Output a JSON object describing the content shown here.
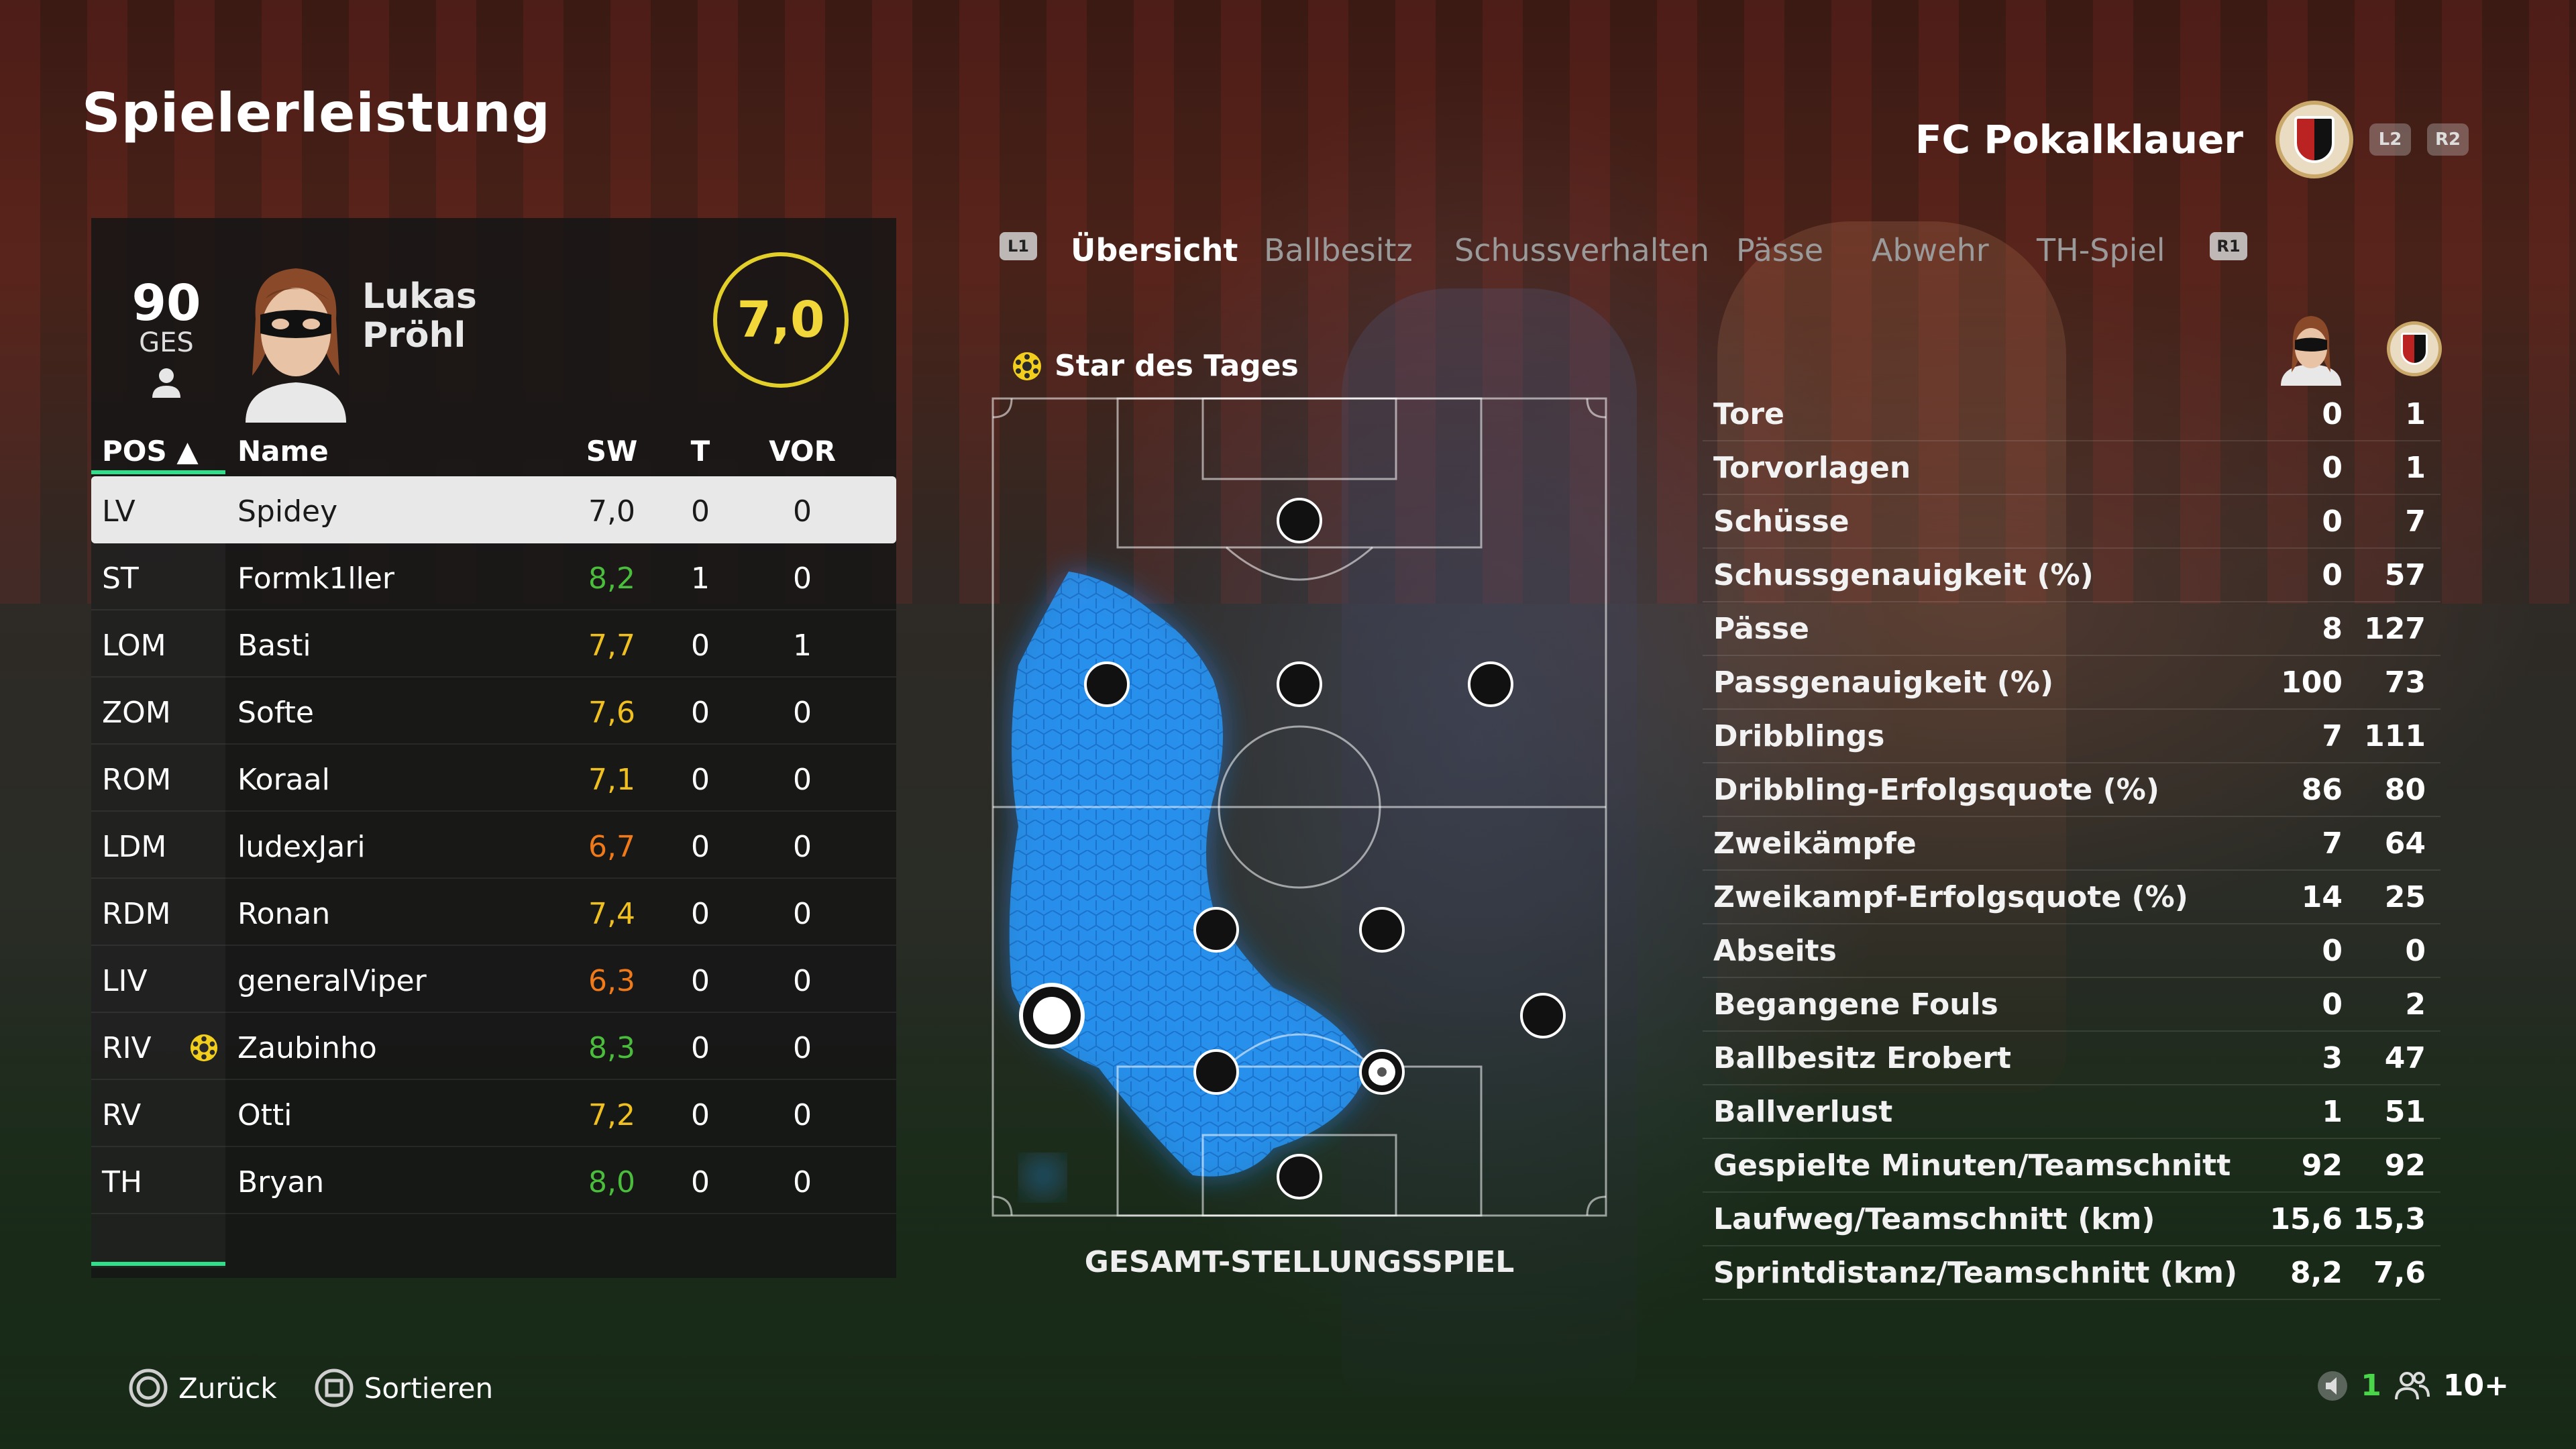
{
  "page": {
    "title": "Spielerleistung"
  },
  "club": {
    "name": "FC Pokalklauer",
    "buttons": [
      "L2",
      "R2"
    ]
  },
  "player": {
    "overall": "90",
    "overall_label": "GES",
    "first_name": "Lukas",
    "last_name": "Pröhl",
    "match_rating": "7,0"
  },
  "table": {
    "headers": {
      "pos": "POS ▲",
      "name": "Name",
      "sw": "SW",
      "t": "T",
      "vor": "VOR"
    },
    "rows": [
      {
        "pos": "LV",
        "name": "Spidey",
        "sw": "7,0",
        "t": "0",
        "vor": "0",
        "color": "#1a1a1a",
        "selected": true
      },
      {
        "pos": "ST",
        "name": "Formk1ller",
        "sw": "8,2",
        "t": "1",
        "vor": "0",
        "color": "#4bbd3c"
      },
      {
        "pos": "LOM",
        "name": "Basti",
        "sw": "7,7",
        "t": "0",
        "vor": "1",
        "color": "#f0c020"
      },
      {
        "pos": "ZOM",
        "name": "Softe",
        "sw": "7,6",
        "t": "0",
        "vor": "0",
        "color": "#f0c020"
      },
      {
        "pos": "ROM",
        "name": "Koraal",
        "sw": "7,1",
        "t": "0",
        "vor": "0",
        "color": "#f0c020"
      },
      {
        "pos": "LDM",
        "name": "ludexJari",
        "sw": "6,7",
        "t": "0",
        "vor": "0",
        "color": "#f07a1a"
      },
      {
        "pos": "RDM",
        "name": "Ronan",
        "sw": "7,4",
        "t": "0",
        "vor": "0",
        "color": "#f0c020"
      },
      {
        "pos": "LIV",
        "name": "generalViper",
        "sw": "6,3",
        "t": "0",
        "vor": "0",
        "color": "#f07a1a"
      },
      {
        "pos": "RIV",
        "name": "Zaubinho",
        "sw": "8,3",
        "t": "0",
        "vor": "0",
        "color": "#4bbd3c",
        "star": true
      },
      {
        "pos": "RV",
        "name": "Otti",
        "sw": "7,2",
        "t": "0",
        "vor": "0",
        "color": "#f0c020"
      },
      {
        "pos": "TH",
        "name": "Bryan",
        "sw": "8,0",
        "t": "0",
        "vor": "0",
        "color": "#4bbd3c"
      }
    ]
  },
  "tabs": {
    "left_chip": "L1",
    "right_chip": "R1",
    "items": [
      "Übersicht",
      "Ballbesitz",
      "Schussverhalten",
      "Pässe",
      "Abwehr",
      "TH-Spiel"
    ],
    "active": "Übersicht"
  },
  "star_of_day": "Star des Tages",
  "pitch_caption": "GESAMT-STELLUNGSSPIEL",
  "stats": [
    {
      "label": "Tore",
      "player": "0",
      "team": "1"
    },
    {
      "label": "Torvorlagen",
      "player": "0",
      "team": "1"
    },
    {
      "label": "Schüsse",
      "player": "0",
      "team": "7"
    },
    {
      "label": "Schussgenauigkeit (%)",
      "player": "0",
      "team": "57"
    },
    {
      "label": "Pässe",
      "player": "8",
      "team": "127"
    },
    {
      "label": "Passgenauigkeit (%)",
      "player": "100",
      "team": "73"
    },
    {
      "label": "Dribblings",
      "player": "7",
      "team": "111"
    },
    {
      "label": "Dribbling-Erfolgsquote (%)",
      "player": "86",
      "team": "80"
    },
    {
      "label": "Zweikämpfe",
      "player": "7",
      "team": "64"
    },
    {
      "label": "Zweikampf-Erfolgsquote (%)",
      "player": "14",
      "team": "25"
    },
    {
      "label": "Abseits",
      "player": "0",
      "team": "0"
    },
    {
      "label": "Begangene Fouls",
      "player": "0",
      "team": "2"
    },
    {
      "label": "Ballbesitz Erobert",
      "player": "3",
      "team": "47"
    },
    {
      "label": "Ballverlust",
      "player": "1",
      "team": "51"
    },
    {
      "label": "Gespielte Minuten/Teamschnitt",
      "player": "92",
      "team": "92"
    },
    {
      "label": "Laufweg/Teamschnitt (km)",
      "player": "15,6",
      "team": "15,3"
    },
    {
      "label": "Sprintdistanz/Teamschnitt (km)",
      "player": "8,2",
      "team": "7,6"
    }
  ],
  "footer": {
    "back": "Zurück",
    "sort": "Sortieren",
    "count_a": "1",
    "count_b": "10+"
  },
  "colors": {
    "accent_green": "#2fe08a",
    "rating_yellow": "#e3cf2a",
    "heat_blue": "#1e90ff"
  }
}
